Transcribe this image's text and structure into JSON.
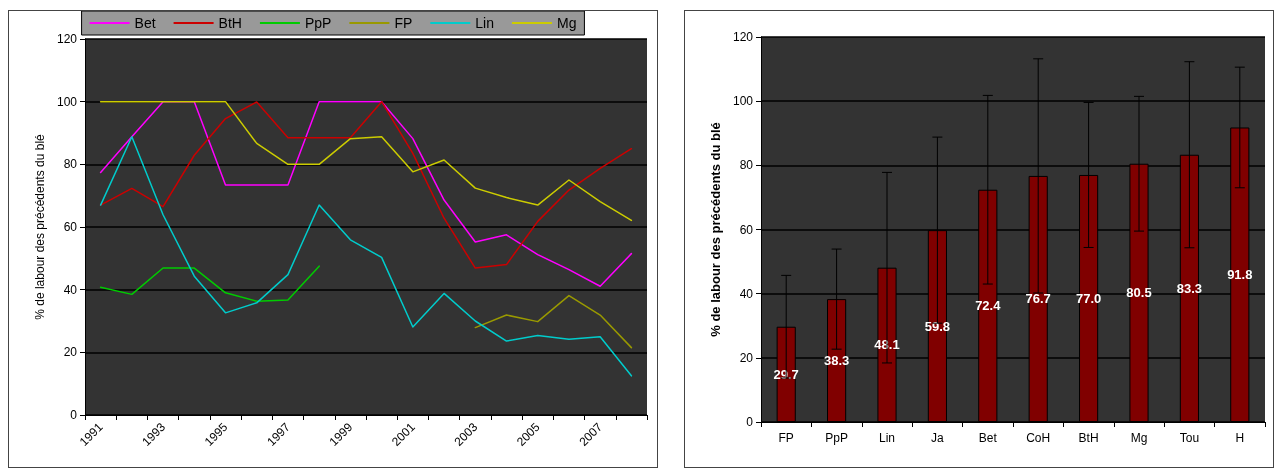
{
  "chart_data": [
    {
      "type": "line",
      "ylabel": "% de labour des précédents du blé",
      "categories": [
        "1991",
        null,
        "1993",
        null,
        "1995",
        null,
        "1997",
        null,
        "1999",
        null,
        "2001",
        null,
        "2003",
        null,
        "2005",
        null,
        "2007",
        null
      ],
      "ylim": [
        0,
        120
      ],
      "yticks": [
        0,
        20,
        40,
        60,
        80,
        100,
        120
      ],
      "grid": "y",
      "legend": "top",
      "marker": "none",
      "line_style": "solid",
      "series": [
        {
          "name": "Bet",
          "color": "#ff00ff",
          "values": [
            77.4,
            88.8,
            100,
            100,
            73.4,
            73.4,
            73.4,
            100,
            100,
            100,
            88.2,
            68.6,
            55.2,
            57.5,
            51.2,
            46.4,
            41.1,
            51.5
          ]
        },
        {
          "name": "BtH",
          "color": "#cc0000",
          "values": [
            67,
            72.3,
            66.5,
            82.9,
            94.6,
            99.9,
            88.5,
            88.5,
            88.5,
            100,
            83.5,
            62.8,
            46.9,
            48,
            61.8,
            71.8,
            78.7,
            85
          ]
        },
        {
          "name": "PpP",
          "color": "#00cc00",
          "values": [
            40.8,
            38.5,
            46.9,
            46.9,
            39,
            36.3,
            36.7,
            47.5,
            null,
            null,
            null,
            null,
            null,
            null,
            null,
            null,
            null,
            null
          ]
        },
        {
          "name": "FP",
          "color": "#999900",
          "values": [
            null,
            null,
            null,
            null,
            null,
            null,
            null,
            null,
            null,
            null,
            null,
            null,
            27.9,
            31.9,
            29.8,
            38.1,
            31.9,
            21.5
          ]
        },
        {
          "name": "Lin",
          "color": "#00cccc",
          "values": [
            67,
            88.8,
            63.9,
            44.3,
            32.6,
            35.8,
            44.8,
            67,
            55.9,
            50.3,
            28.1,
            38.8,
            30,
            23.6,
            25.4,
            24.2,
            25,
            12.5
          ]
        },
        {
          "name": "Mg",
          "color": "#cccc00",
          "values": [
            100,
            100,
            100,
            100,
            100,
            86.7,
            80,
            80,
            88.2,
            88.8,
            77.6,
            81.4,
            72.4,
            69.4,
            67,
            75,
            68.1,
            62.1
          ]
        }
      ]
    },
    {
      "type": "bar",
      "ylabel": "% de labour des précédents du blé",
      "categories": [
        "FP",
        "PpP",
        "Lin",
        "Ja",
        "Bet",
        "CoH",
        "BtH",
        "Mg",
        "Tou",
        "H"
      ],
      "values": [
        29.7,
        38.3,
        48.1,
        59.8,
        72.4,
        76.7,
        77.0,
        80.5,
        83.3,
        91.8
      ],
      "value_labels": [
        "29.7",
        "38.3",
        "48.1",
        "59.8",
        "72.4",
        "76.7",
        "77.0",
        "80.5",
        "83.3",
        "91.8"
      ],
      "errors": [
        16,
        15.6,
        29.7,
        29,
        29.4,
        36.5,
        22.6,
        21,
        29,
        18.8
      ],
      "color": "#800000",
      "ylim": [
        0,
        120
      ],
      "yticks": [
        0,
        20,
        40,
        60,
        80,
        100,
        120
      ],
      "grid": "y"
    }
  ]
}
